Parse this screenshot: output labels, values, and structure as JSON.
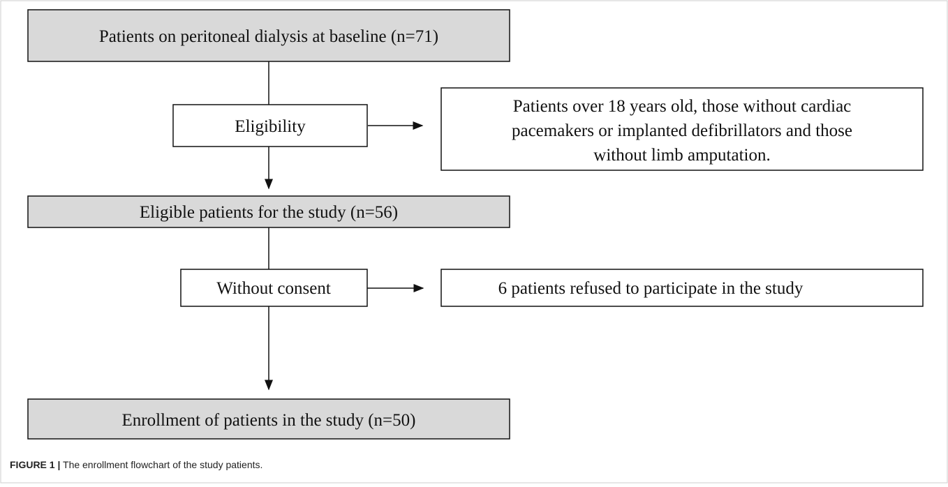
{
  "nodes": [
    {
      "label": "Patients on peritoneal dialysis at baseline (n=71)"
    },
    {
      "label": "Eligibility"
    },
    {
      "lines": [
        "Patients over 18 years old, those without cardiac",
        "pacemakers or implanted defibrillators and those",
        "without limb amputation."
      ]
    },
    {
      "label": "Eligible patients for the study (n=56)"
    },
    {
      "label": "Without consent"
    },
    {
      "label": "6 patients refused to participate in the study"
    },
    {
      "label": "Enrollment of patients in the study (n=50)"
    }
  ],
  "caption": {
    "label": "FIGURE 1 |",
    "text": " The enrollment flowchart of the study patients."
  }
}
